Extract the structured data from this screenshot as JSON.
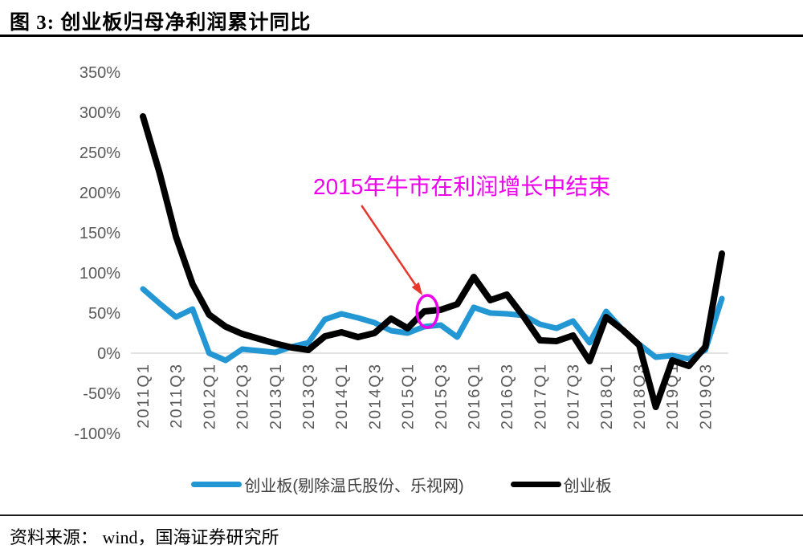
{
  "figure": {
    "title": "图 3: 创业板归母净利润累计同比",
    "source": "资料来源： wind，国海证券研究所"
  },
  "chart_data": {
    "type": "line",
    "title": "创业板归母净利润累计同比",
    "x": [
      "2011Q1",
      "2011Q2",
      "2011Q3",
      "2011Q4",
      "2012Q1",
      "2012Q2",
      "2012Q3",
      "2012Q4",
      "2013Q1",
      "2013Q2",
      "2013Q3",
      "2013Q4",
      "2014Q1",
      "2014Q2",
      "2014Q3",
      "2014Q4",
      "2015Q1",
      "2015Q2",
      "2015Q3",
      "2015Q4",
      "2016Q1",
      "2016Q2",
      "2016Q3",
      "2016Q4",
      "2017Q1",
      "2017Q2",
      "2017Q3",
      "2017Q4",
      "2018Q1",
      "2018Q2",
      "2018Q3",
      "2018Q4",
      "2019Q1",
      "2019Q2",
      "2019Q3",
      "2019Q4"
    ],
    "x_tick_every": 2,
    "x_ticks_shown": [
      "2011Q1",
      "2011Q3",
      "2012Q1",
      "2012Q3",
      "2013Q1",
      "2013Q3",
      "2014Q1",
      "2014Q3",
      "2015Q1",
      "2015Q3",
      "2016Q1",
      "2016Q3",
      "2017Q1",
      "2017Q3",
      "2018Q1",
      "2018Q3",
      "2019Q1",
      "2019Q3"
    ],
    "series": [
      {
        "name": "创业板(剔除温氏股份、乐视网)",
        "color": "#2397D4",
        "line_width": 7,
        "values": [
          80,
          62,
          45,
          55,
          0,
          -9,
          5,
          3,
          1,
          8,
          13,
          42,
          49,
          44,
          38,
          28,
          25,
          33,
          35,
          20,
          57,
          50,
          49,
          47,
          36,
          31,
          40,
          13,
          52,
          29,
          11,
          -5,
          -3,
          -7,
          4,
          68
        ]
      },
      {
        "name": "创业板",
        "color": "#000000",
        "line_width": 8,
        "values": [
          295,
          225,
          145,
          86,
          48,
          33,
          24,
          18,
          12,
          7,
          4,
          21,
          26,
          20,
          25,
          43,
          31,
          52,
          54,
          61,
          95,
          66,
          73,
          46,
          16,
          15,
          22,
          -10,
          45,
          29,
          10,
          -67,
          -9,
          -16,
          8,
          124
        ]
      }
    ],
    "ylim": [
      -100,
      350
    ],
    "y_ticks": [
      350,
      300,
      250,
      200,
      150,
      100,
      50,
      0,
      -50,
      -100
    ],
    "y_unit": "%",
    "grid": "zero-line-only",
    "legend_position": "bottom",
    "axis_text_color": "#595959",
    "gridline_color": "#D9D9D9",
    "annotation": {
      "label": "2015年牛市在利润增长中结束",
      "label_color": "#EE00EE",
      "arrow_color": "#E5372B",
      "ellipse_color": "#EE00EE",
      "points_to": {
        "series": "创业板",
        "x": "2015Q2"
      }
    }
  }
}
